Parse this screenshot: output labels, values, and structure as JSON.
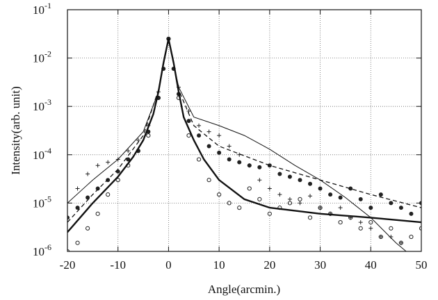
{
  "chart_data": {
    "type": "line",
    "xlabel": "Angle(arcmin.)",
    "ylabel": "Intensity(arb. unit)",
    "xlim": [
      -20,
      50
    ],
    "xticks": [
      -20,
      -10,
      0,
      10,
      20,
      30,
      40,
      50
    ],
    "ylim": [
      1e-06,
      0.1
    ],
    "ylog": true,
    "yticks": [
      {
        "value": 1e-06,
        "label": "10",
        "exponent": "-6"
      },
      {
        "value": 1e-05,
        "label": "10",
        "exponent": "-5"
      },
      {
        "value": 0.0001,
        "label": "10",
        "exponent": "-4"
      },
      {
        "value": 0.001,
        "label": "10",
        "exponent": "-3"
      },
      {
        "value": 0.01,
        "label": "10",
        "exponent": "-2"
      },
      {
        "value": 0.1,
        "label": "10",
        "exponent": "-1"
      }
    ],
    "grid": true,
    "series": [
      {
        "style": "filled-circle",
        "color": "#222",
        "x": [
          -20,
          -18,
          -16,
          -14,
          -12,
          -10,
          -8,
          -6,
          -4,
          -2,
          -1,
          0,
          1,
          2,
          4,
          6,
          8,
          10,
          12,
          14,
          16,
          18,
          20,
          22,
          24,
          26,
          28,
          30,
          32,
          34,
          36,
          38,
          40,
          42,
          44,
          46,
          48,
          50
        ],
        "values": [
          5e-06,
          8e-06,
          1.3e-05,
          2e-05,
          3e-05,
          4.5e-05,
          8e-05,
          0.00012,
          0.0003,
          0.0015,
          0.006,
          0.025,
          0.006,
          0.0018,
          0.0005,
          0.00025,
          0.00015,
          0.00011,
          8e-05,
          7e-05,
          6e-05,
          5.5e-05,
          6e-05,
          4e-05,
          3.5e-05,
          3e-05,
          2.5e-05,
          2e-05,
          1.5e-05,
          1.3e-05,
          2e-05,
          1.2e-05,
          8e-06,
          1.5e-05,
          1e-05,
          8e-06,
          6e-06,
          1e-05
        ]
      },
      {
        "style": "open-circle",
        "color": "#222",
        "x": [
          -20,
          -18,
          -16,
          -14,
          -12,
          -10,
          -8,
          -6,
          -4,
          -2,
          0,
          2,
          4,
          6,
          8,
          10,
          12,
          14,
          16,
          18,
          20,
          22,
          24,
          26,
          28,
          30,
          32,
          34,
          36,
          38,
          40,
          42,
          44,
          46,
          48,
          50
        ],
        "values": [
          1e-06,
          1.5e-06,
          3e-06,
          6e-06,
          1.5e-05,
          3e-05,
          6e-05,
          0.00012,
          0.00025,
          0.0015,
          0.025,
          0.0015,
          0.00025,
          8e-05,
          3e-05,
          1.5e-05,
          1e-05,
          8e-06,
          2e-05,
          1.2e-05,
          6e-06,
          8e-06,
          1e-05,
          1.2e-05,
          5e-06,
          8e-06,
          6e-06,
          4e-06,
          5e-06,
          3e-06,
          4e-06,
          2e-06,
          3e-06,
          1.5e-06,
          2e-06,
          3e-06
        ]
      },
      {
        "style": "plus",
        "color": "#222",
        "x": [
          -20,
          -18,
          -16,
          -14,
          -12,
          -10,
          -8,
          -6,
          -4,
          -2,
          0,
          2,
          4,
          6,
          8,
          10,
          12,
          14,
          16,
          18,
          20,
          22,
          24,
          26,
          28,
          30,
          32,
          34,
          36,
          38,
          40,
          42,
          44,
          46
        ],
        "values": [
          1e-05,
          2e-05,
          4e-05,
          6e-05,
          7e-05,
          8e-05,
          0.00012,
          0.0002,
          0.0004,
          0.002,
          0.025,
          0.0025,
          0.0008,
          0.0004,
          0.0003,
          0.00025,
          0.00015,
          0.0001,
          6e-05,
          3e-05,
          2e-05,
          1.5e-05,
          1.2e-05,
          1e-05,
          1.4e-05,
          8e-06,
          6e-06,
          8e-06,
          5e-06,
          4e-06,
          3e-06,
          2e-06,
          2e-06,
          1.5e-06
        ]
      },
      {
        "style": "thin-line",
        "color": "#111",
        "x": [
          -20,
          -15,
          -10,
          -5,
          -2,
          0,
          2,
          5,
          10,
          15,
          20,
          25,
          30,
          35,
          40,
          45,
          47
        ],
        "values": [
          1e-05,
          3e-05,
          8e-05,
          0.0003,
          0.002,
          0.025,
          0.0025,
          0.0006,
          0.0004,
          0.00025,
          0.00013,
          6e-05,
          3e-05,
          1.3e-05,
          5e-06,
          1.5e-06,
          1e-06
        ]
      },
      {
        "style": "dashed-line",
        "color": "#111",
        "x": [
          -20,
          -15,
          -10,
          -5,
          -2,
          0,
          2,
          5,
          10,
          20,
          30,
          40,
          50
        ],
        "values": [
          4e-06,
          1.5e-05,
          5e-05,
          0.00025,
          0.0022,
          0.025,
          0.0022,
          0.0004,
          0.00015,
          6e-05,
          3e-05,
          1.5e-05,
          8e-06
        ]
      },
      {
        "style": "thick-line",
        "color": "#111",
        "x": [
          -20,
          -15,
          -10,
          -7,
          -5,
          -3,
          -2,
          -1,
          0,
          1,
          2,
          3,
          5,
          7,
          10,
          15,
          20,
          30,
          40,
          50
        ],
        "values": [
          2.5e-06,
          1e-05,
          3.5e-05,
          9e-05,
          0.0002,
          0.0007,
          0.002,
          0.008,
          0.025,
          0.008,
          0.002,
          0.0006,
          0.0002,
          8e-05,
          3e-05,
          1.2e-05,
          8e-06,
          6e-06,
          5e-06,
          4e-06
        ]
      }
    ]
  }
}
